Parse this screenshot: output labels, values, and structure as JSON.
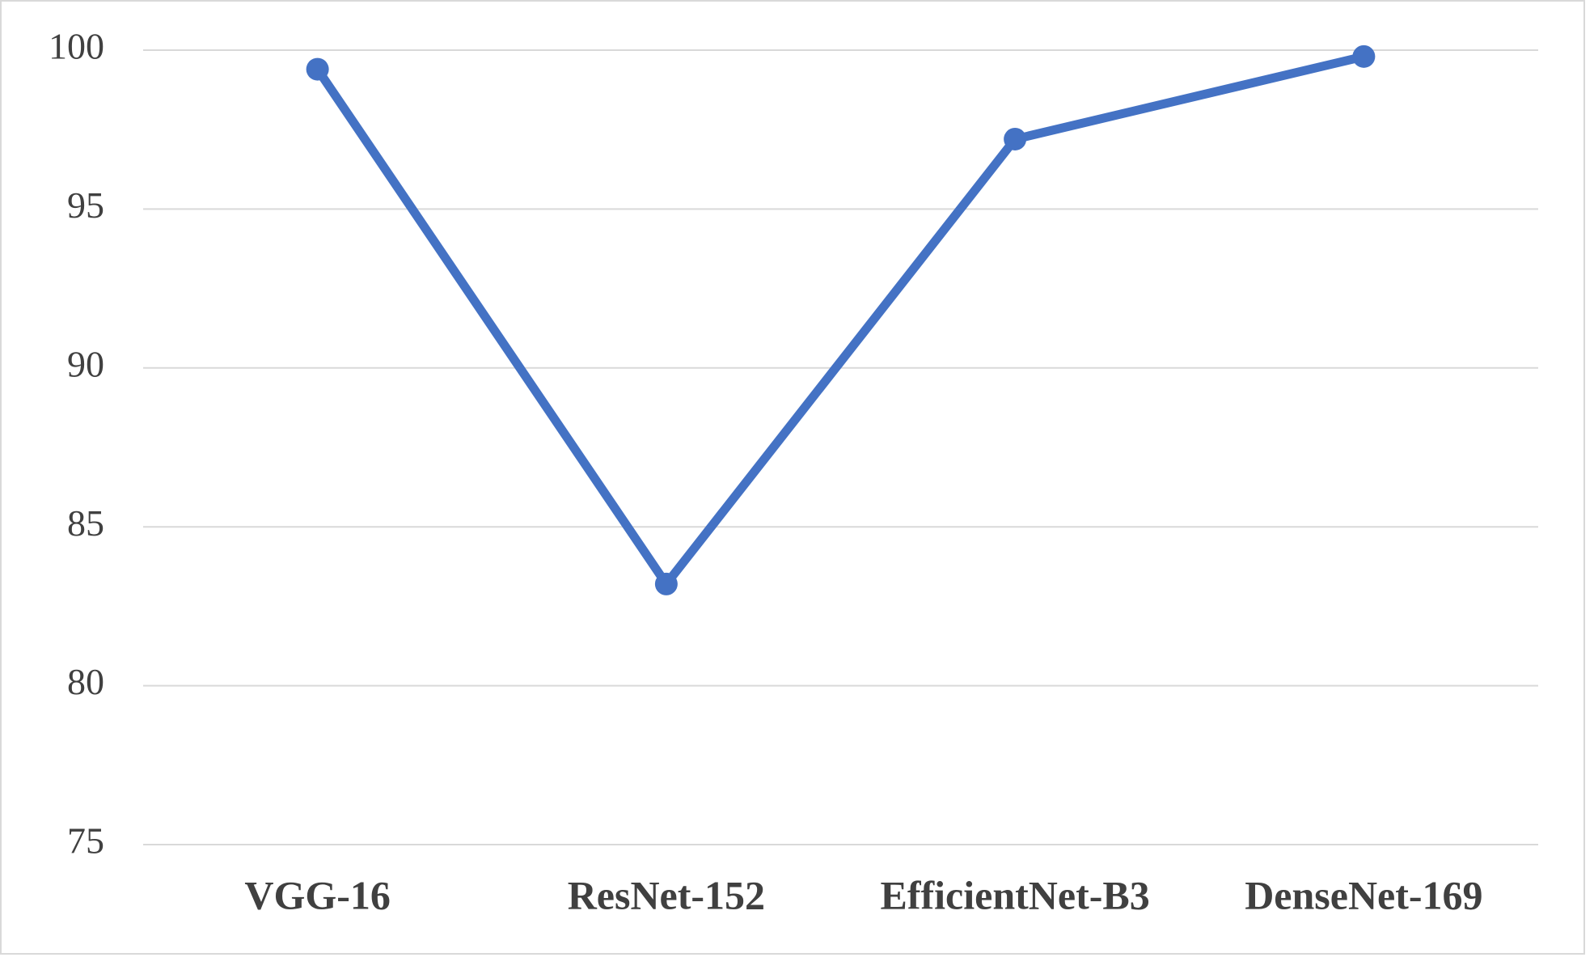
{
  "chart_data": {
    "type": "line",
    "categories": [
      "VGG-16",
      "ResNet-152",
      "EfficientNet-B3",
      "DenseNet-169"
    ],
    "values": [
      99.4,
      83.2,
      97.2,
      99.8
    ],
    "color": "#4472c4",
    "ylim": [
      75,
      100
    ],
    "yticks": [
      75,
      80,
      85,
      90,
      95,
      100
    ],
    "grid": true
  }
}
